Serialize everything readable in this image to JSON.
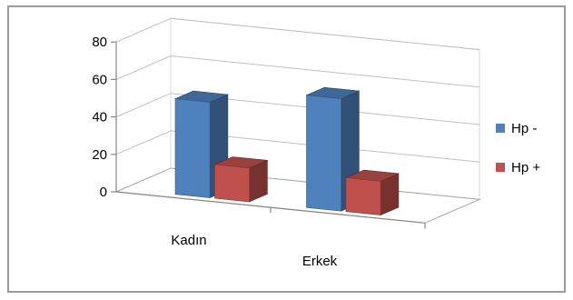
{
  "chart_data": {
    "type": "bar",
    "subtype": "3d-clustered-column",
    "categories": [
      "Kadın",
      "Erkek"
    ],
    "series": [
      {
        "name": "Hp -",
        "values": [
          51,
          60
        ],
        "color": "#4f81bd"
      },
      {
        "name": "Hp +",
        "values": [
          18,
          18
        ],
        "color": "#c0504d"
      }
    ],
    "y_ticks": [
      "0",
      "20",
      "40",
      "60",
      "80"
    ],
    "ylim": [
      0,
      80
    ],
    "grid": true,
    "legend_position": "right"
  }
}
